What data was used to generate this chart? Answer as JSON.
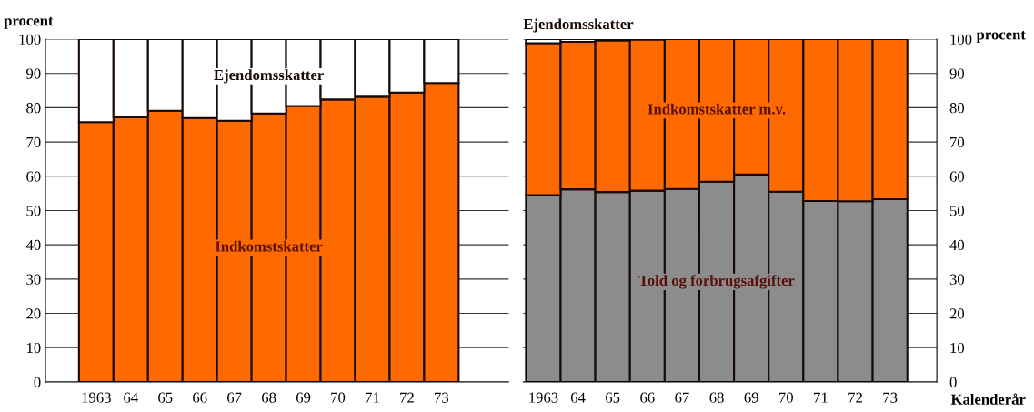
{
  "chart_data": [
    {
      "type": "bar",
      "stacked": true,
      "ylabel": "procent",
      "categories": [
        "1963",
        "64",
        "65",
        "66",
        "67",
        "68",
        "69",
        "70",
        "71",
        "72",
        "73"
      ],
      "ylim": [
        0,
        100
      ],
      "yticks": [
        0,
        10,
        20,
        30,
        40,
        50,
        60,
        70,
        80,
        90,
        100
      ],
      "grid": "y",
      "series": [
        {
          "name": "Indkomstskatter",
          "color": "#ff6a00",
          "values": [
            75.8,
            77.2,
            79.1,
            77.0,
            76.2,
            78.3,
            80.5,
            82.4,
            83.2,
            84.4,
            87.2
          ]
        },
        {
          "name": "Ejendomsskatter",
          "color": "#ffffff",
          "values": [
            24.2,
            22.8,
            20.9,
            23.0,
            23.8,
            21.7,
            19.5,
            17.6,
            16.8,
            15.6,
            12.8
          ]
        }
      ]
    },
    {
      "type": "bar",
      "stacked": true,
      "ylabel": "procent",
      "xlabel": "Kalenderår",
      "categories": [
        "1963",
        "64",
        "65",
        "66",
        "67",
        "68",
        "69",
        "70",
        "71",
        "72",
        "73"
      ],
      "ylim": [
        0,
        100
      ],
      "yticks": [
        0,
        10,
        20,
        30,
        40,
        50,
        60,
        70,
        80,
        90,
        100
      ],
      "grid": "y",
      "series": [
        {
          "name": "Told og forbrugsafgifter",
          "color": "#8c8c8c",
          "values": [
            54.5,
            56.2,
            55.4,
            55.8,
            56.3,
            58.4,
            60.5,
            55.5,
            52.8,
            52.7,
            53.3
          ]
        },
        {
          "name": "Indkomstskatter m.v.",
          "color": "#ff6a00",
          "values": [
            44.3,
            43.0,
            44.2,
            44.0,
            43.7,
            41.6,
            39.5,
            44.5,
            47.2,
            47.3,
            46.7
          ]
        },
        {
          "name": "Ejendomsskatter",
          "color": "#ffffff",
          "values": [
            1.2,
            0.8,
            0.4,
            null,
            0,
            0,
            0,
            0,
            0,
            0,
            0
          ]
        }
      ]
    }
  ]
}
